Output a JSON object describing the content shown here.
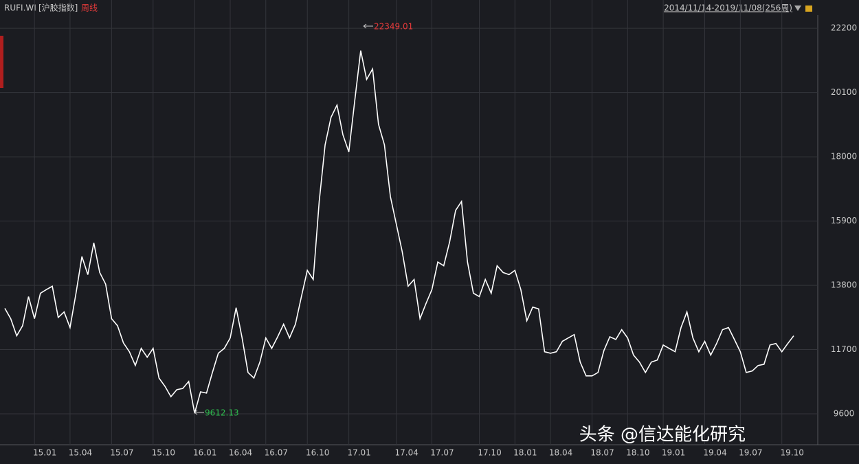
{
  "chart_data": {
    "type": "line",
    "symbol": "RUFI.WI",
    "name": "[沪胶指数]",
    "period": "周线",
    "range": "2014/11/14-2019/11/08(256周)",
    "color": "#ffffff",
    "grid": true,
    "ylim": [
      8590,
      22630
    ],
    "yticks": [
      9600,
      11700,
      13800,
      15900,
      18000,
      20100,
      22200
    ],
    "annotations": [
      {
        "text": "22349.01",
        "color": "#e83a3a"
      },
      {
        "text": "9612.13",
        "color": "#2fbf4f"
      }
    ],
    "watermark": "头条 @信达能化研究",
    "categories": [
      null,
      null,
      null,
      null,
      null,
      "15.01",
      null,
      null,
      null,
      null,
      null,
      "15.04",
      null,
      null,
      null,
      null,
      null,
      null,
      "15.07",
      null,
      null,
      null,
      null,
      null,
      null,
      "15.10",
      null,
      null,
      null,
      null,
      null,
      null,
      "16.01",
      null,
      null,
      null,
      null,
      null,
      "16.04",
      null,
      null,
      null,
      null,
      null,
      "16.07",
      null,
      null,
      null,
      null,
      null,
      null,
      "16.10",
      null,
      null,
      null,
      null,
      null,
      null,
      "17.01",
      null,
      null,
      null,
      null,
      null,
      null,
      null,
      "17.04",
      null,
      null,
      null,
      null,
      null,
      "17.07",
      null,
      null,
      null,
      null,
      null,
      null,
      null,
      "17.10",
      null,
      null,
      null,
      null,
      null,
      "18.01",
      null,
      null,
      null,
      null,
      null,
      "18.04",
      null,
      null,
      null,
      null,
      null,
      null,
      "18.07",
      null,
      null,
      null,
      null,
      null,
      "18.10",
      null,
      null,
      null,
      null,
      null,
      "19.01",
      null,
      null,
      null,
      null,
      null,
      null,
      "19.04",
      null,
      null,
      null,
      null,
      null,
      "19.07",
      null,
      null,
      null,
      null,
      null,
      null,
      "19.10",
      null,
      null
    ],
    "values": [
      13050,
      12710,
      12150,
      12480,
      13430,
      12710,
      13540,
      13660,
      13770,
      12750,
      12930,
      12420,
      13540,
      14740,
      14150,
      15190,
      14220,
      13840,
      12710,
      12480,
      11920,
      11630,
      11180,
      11740,
      11450,
      11740,
      10770,
      10500,
      10160,
      10390,
      10430,
      10660,
      9620,
      10320,
      10280,
      10950,
      11580,
      11740,
      12080,
      13070,
      12080,
      10950,
      10770,
      11290,
      12080,
      11740,
      12120,
      12530,
      12080,
      12530,
      13430,
      14290,
      13990,
      16540,
      18390,
      19290,
      19690,
      18720,
      18160,
      19850,
      21470,
      20530,
      20870,
      19060,
      18390,
      16700,
      15800,
      14900,
      13770,
      13990,
      12710,
      13200,
      13660,
      14560,
      14440,
      15230,
      16250,
      16540,
      14560,
      13540,
      13430,
      13990,
      13540,
      14440,
      14220,
      14150,
      14290,
      13660,
      12640,
      13090,
      13030,
      11630,
      11580,
      11630,
      11970,
      12080,
      12190,
      11290,
      10840,
      10840,
      10950,
      11670,
      12120,
      12030,
      12350,
      12080,
      11520,
      11290,
      10950,
      11290,
      11360,
      11850,
      11740,
      11630,
      12420,
      12930,
      12080,
      11630,
      11970,
      11520,
      11900,
      12350,
      12420,
      12030,
      11630,
      10950,
      11000,
      11180,
      11220,
      11850,
      11900,
      11630,
      11900,
      12150
    ]
  }
}
